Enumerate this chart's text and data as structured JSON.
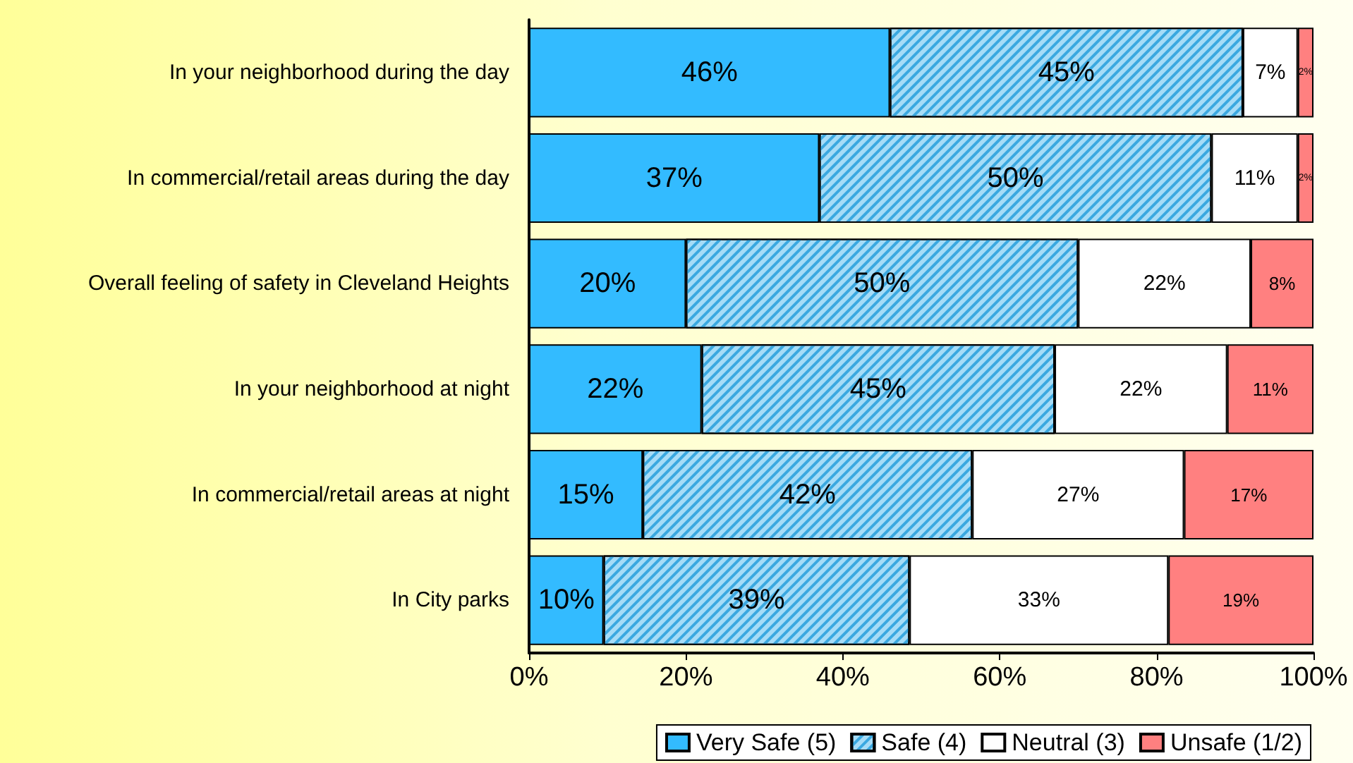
{
  "chart_data": {
    "type": "bar",
    "orientation": "horizontal",
    "stacked": true,
    "categories": [
      "In your neighborhood during the day",
      "In commercial/retail areas during the day",
      "Overall feeling of safety in Cleveland Heights",
      "In your neighborhood at night",
      "In commercial/retail areas at night",
      "In City parks"
    ],
    "series": [
      {
        "name": "Very Safe (5)",
        "color": "#33bbff",
        "values": [
          46,
          37,
          20,
          22,
          14.5,
          9.5
        ],
        "value_labels": [
          "46%",
          "37%",
          "20%",
          "22%",
          "15%",
          "10%"
        ]
      },
      {
        "name": "Safe (4)",
        "color": "#a6dcf7",
        "values": [
          45,
          50,
          50,
          45,
          42,
          39
        ],
        "value_labels": [
          "45%",
          "50%",
          "50%",
          "45%",
          "42%",
          "39%"
        ]
      },
      {
        "name": "Neutral (3)",
        "color": "#ffffff",
        "values": [
          7,
          11,
          22,
          22,
          27,
          33
        ],
        "value_labels": [
          "7%",
          "11%",
          "22%",
          "22%",
          "27%",
          "33%"
        ]
      },
      {
        "name": "Unsafe (1/2)",
        "color": "#ff8080",
        "values": [
          2,
          2,
          8,
          11,
          16.5,
          18.5
        ],
        "value_labels": [
          "2%",
          "2%",
          "8%",
          "11%",
          "17%",
          "19%"
        ]
      }
    ],
    "xlim": [
      0,
      100
    ],
    "xticks": [
      {
        "value": 0,
        "label": "0%"
      },
      {
        "value": 20,
        "label": "20%"
      },
      {
        "value": 40,
        "label": "40%"
      },
      {
        "value": 60,
        "label": "60%"
      },
      {
        "value": 80,
        "label": "80%"
      },
      {
        "value": 100,
        "label": "100%"
      }
    ],
    "legend": "bottom",
    "grid": false
  }
}
